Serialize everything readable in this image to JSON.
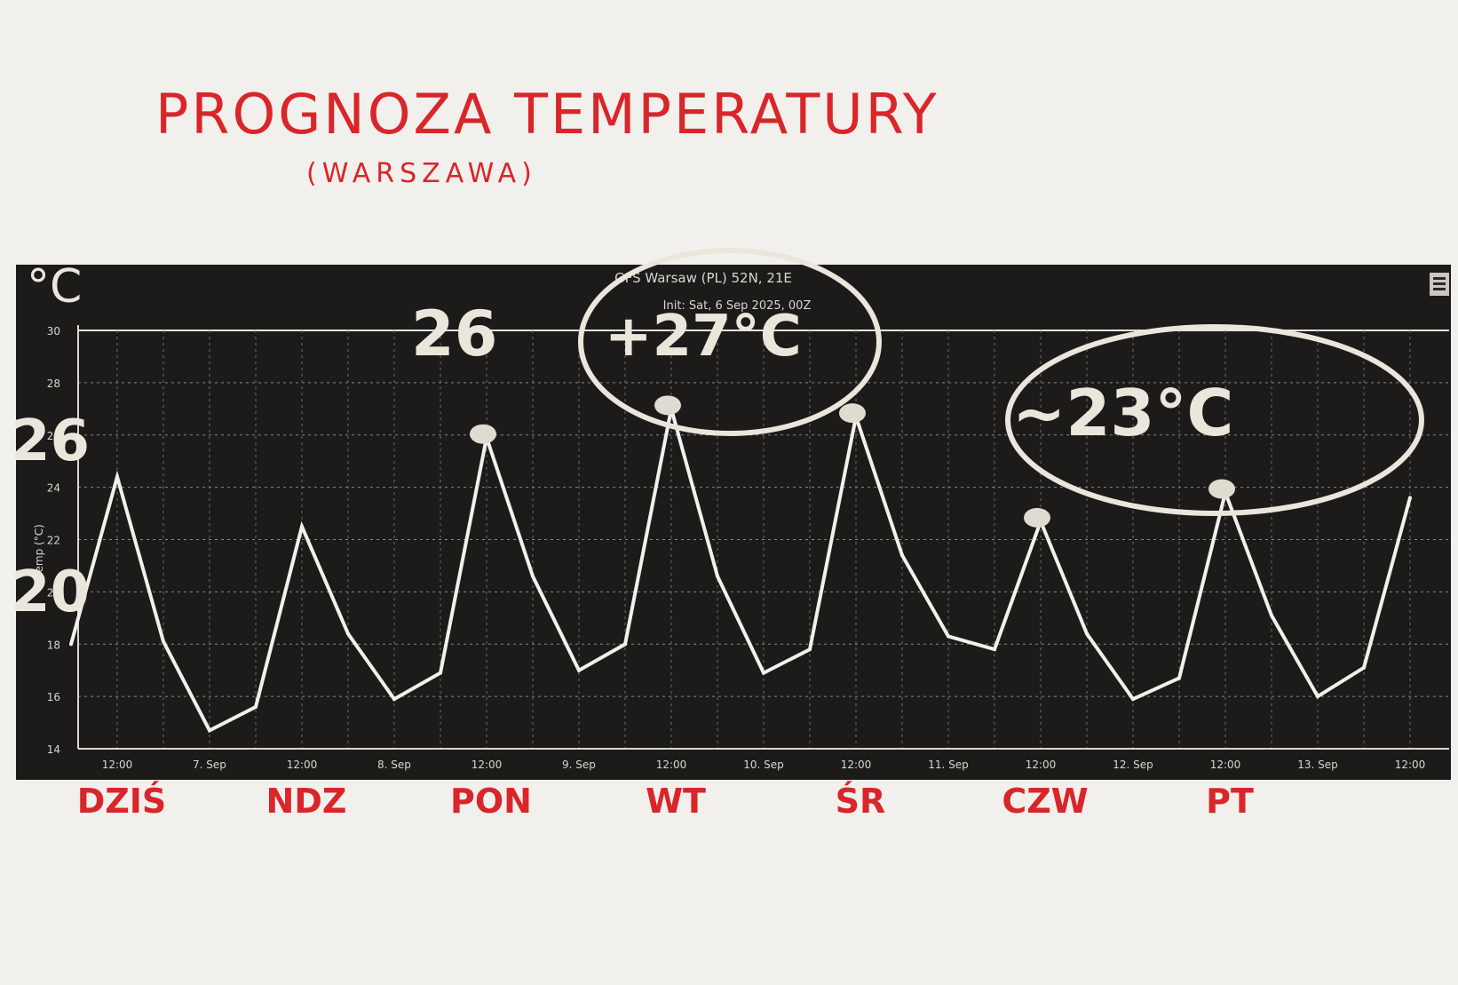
{
  "annotations": {
    "title": "PROGNOZA TEMPERATURY",
    "subtitle": "(WARSZAWA)",
    "unit": "°C",
    "side_labels": [
      "26",
      "20"
    ],
    "peak_labels": [
      {
        "text": "26",
        "anchor": "2025-09-08 12:00"
      },
      {
        "text": "+27°C",
        "anchor": "2025-09-09 12:00"
      },
      {
        "text": "~23°C",
        "anchor": "2025-09-12 12:00"
      }
    ],
    "days": [
      "DZIŚ",
      "NDZ",
      "PON",
      "WT",
      "ŚR",
      "CZW",
      "PT"
    ]
  },
  "chart_data": {
    "type": "line",
    "title": "GFS Warsaw (PL) 52N, 21E",
    "subtitle": "Init: Sat, 6 Sep 2025, 00Z",
    "xlabel": "",
    "ylabel": "Temp (°C)",
    "ylim": [
      14,
      30
    ],
    "yticks": [
      14,
      16,
      18,
      20,
      22,
      24,
      26,
      28,
      30
    ],
    "xticks": [
      "12:00",
      "7. Sep",
      "12:00",
      "8. Sep",
      "12:00",
      "9. Sep",
      "12:00",
      "10. Sep",
      "12:00",
      "11. Sep",
      "12:00",
      "12. Sep",
      "12:00",
      "13. Sep",
      "12:00"
    ],
    "grid": true,
    "series": [
      {
        "name": "Temp",
        "color": "#f2f0ea",
        "x": [
          "2025-09-06 06:00",
          "2025-09-06 12:00",
          "2025-09-06 18:00",
          "2025-09-07 00:00",
          "2025-09-07 06:00",
          "2025-09-07 12:00",
          "2025-09-07 18:00",
          "2025-09-08 00:00",
          "2025-09-08 06:00",
          "2025-09-08 12:00",
          "2025-09-08 18:00",
          "2025-09-09 00:00",
          "2025-09-09 06:00",
          "2025-09-09 12:00",
          "2025-09-09 18:00",
          "2025-09-10 00:00",
          "2025-09-10 06:00",
          "2025-09-10 12:00",
          "2025-09-10 18:00",
          "2025-09-11 00:00",
          "2025-09-11 06:00",
          "2025-09-11 12:00",
          "2025-09-11 18:00",
          "2025-09-12 00:00",
          "2025-09-12 06:00",
          "2025-09-12 12:00",
          "2025-09-12 18:00",
          "2025-09-13 00:00",
          "2025-09-13 06:00",
          "2025-09-13 12:00"
        ],
        "values": [
          18,
          24.4,
          18.1,
          14.7,
          15.6,
          22.5,
          18.4,
          15.9,
          16.9,
          25.9,
          20.6,
          17.0,
          18.0,
          27.0,
          20.6,
          16.9,
          17.8,
          26.7,
          21.4,
          18.3,
          17.8,
          22.7,
          18.4,
          15.9,
          16.7,
          23.8,
          19.1,
          16.0,
          17.1,
          23.6
        ]
      }
    ]
  }
}
